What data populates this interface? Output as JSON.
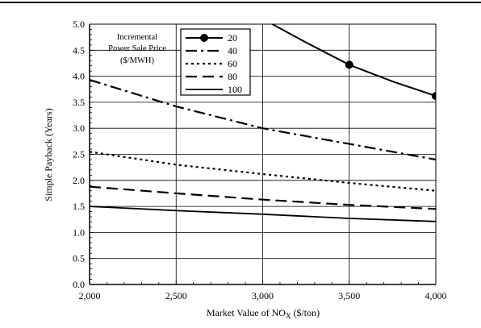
{
  "chart_data": {
    "type": "line",
    "xlabel": "Market Value of NO",
    "xlabel_sub": "X",
    "xlabel_suffix": " ($/ton)",
    "ylabel": "Simple Payback (Years)",
    "xlim": [
      2000,
      4000
    ],
    "ylim": [
      0,
      5
    ],
    "xticks": [
      2000,
      2500,
      3000,
      3500,
      4000
    ],
    "xtick_labels": [
      "2,000",
      "2,500",
      "3,000",
      "3,500",
      "4,000"
    ],
    "yticks": [
      0,
      0.5,
      1,
      1.5,
      2,
      2.5,
      3,
      3.5,
      4,
      4.5,
      5
    ],
    "ytick_labels": [
      "0.0",
      "0.5",
      "1.0",
      "1.5",
      "2.0",
      "2.5",
      "3.0",
      "3.5",
      "4.0",
      "4.5",
      "5.0"
    ],
    "grid": true,
    "legend_title": [
      "Incremental",
      "Power Sale Price",
      "($/MWH)"
    ],
    "legend_placement": "top-center",
    "series": [
      {
        "name": "20",
        "style": "solid-markers",
        "x": [
          3000,
          3250,
          3500,
          3750,
          4000
        ],
        "y": [
          5.1,
          4.65,
          4.22,
          3.9,
          3.62
        ],
        "markers_at": [
          3500,
          4000
        ]
      },
      {
        "name": "40",
        "style": "dash-dot",
        "x": [
          2000,
          2500,
          3000,
          3500,
          4000
        ],
        "y": [
          3.93,
          3.42,
          3.0,
          2.7,
          2.4
        ]
      },
      {
        "name": "60",
        "style": "dotted",
        "x": [
          2000,
          2500,
          3000,
          3500,
          4000
        ],
        "y": [
          2.55,
          2.3,
          2.12,
          1.95,
          1.8
        ]
      },
      {
        "name": "80",
        "style": "long-dash",
        "x": [
          2000,
          2500,
          3000,
          3500,
          4000
        ],
        "y": [
          1.88,
          1.75,
          1.63,
          1.53,
          1.45
        ]
      },
      {
        "name": "100",
        "style": "solid",
        "x": [
          2000,
          2500,
          3000,
          3500,
          4000
        ],
        "y": [
          1.5,
          1.42,
          1.35,
          1.27,
          1.21
        ]
      }
    ]
  }
}
